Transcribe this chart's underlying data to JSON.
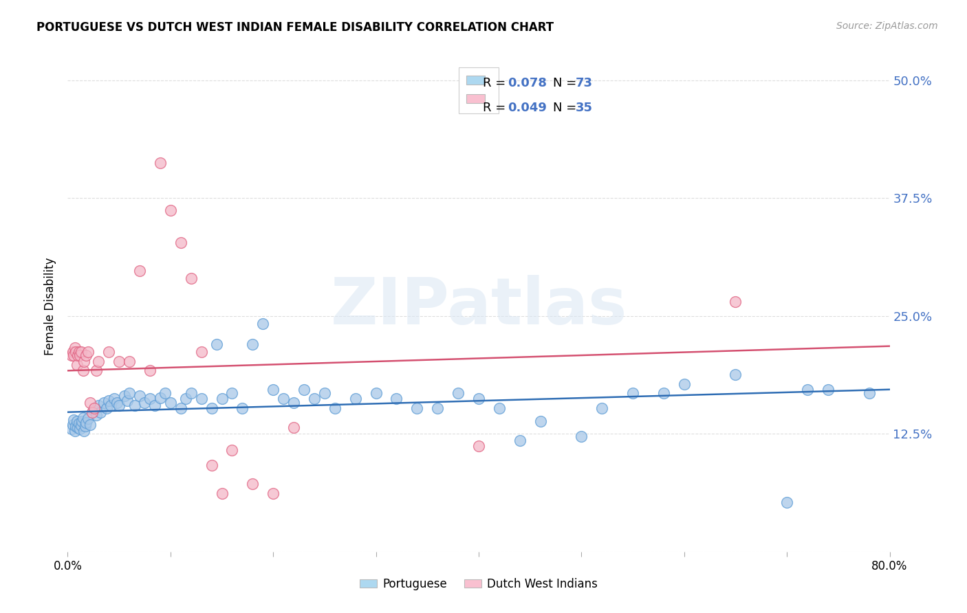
{
  "title": "PORTUGUESE VS DUTCH WEST INDIAN FEMALE DISABILITY CORRELATION CHART",
  "source": "Source: ZipAtlas.com",
  "ylabel": "Female Disability",
  "yticks": [
    0.0,
    0.125,
    0.25,
    0.375,
    0.5
  ],
  "ytick_labels": [
    "",
    "12.5%",
    "25.0%",
    "37.5%",
    "50.0%"
  ],
  "xlim": [
    0.0,
    0.8
  ],
  "ylim": [
    0.0,
    0.52
  ],
  "watermark": "ZIPatlas",
  "blue_color": "#A8C8E8",
  "blue_edge_color": "#5B9BD5",
  "pink_color": "#F4B8C8",
  "pink_edge_color": "#E06080",
  "blue_line_color": "#2E6DB4",
  "pink_line_color": "#D45070",
  "blue_scatter": [
    [
      0.004,
      0.13
    ],
    [
      0.005,
      0.135
    ],
    [
      0.006,
      0.14
    ],
    [
      0.007,
      0.128
    ],
    [
      0.008,
      0.133
    ],
    [
      0.009,
      0.138
    ],
    [
      0.01,
      0.132
    ],
    [
      0.011,
      0.136
    ],
    [
      0.012,
      0.13
    ],
    [
      0.013,
      0.134
    ],
    [
      0.014,
      0.138
    ],
    [
      0.015,
      0.142
    ],
    [
      0.016,
      0.128
    ],
    [
      0.017,
      0.133
    ],
    [
      0.018,
      0.137
    ],
    [
      0.02,
      0.141
    ],
    [
      0.022,
      0.135
    ],
    [
      0.025,
      0.15
    ],
    [
      0.028,
      0.145
    ],
    [
      0.03,
      0.155
    ],
    [
      0.032,
      0.148
    ],
    [
      0.035,
      0.158
    ],
    [
      0.038,
      0.152
    ],
    [
      0.04,
      0.16
    ],
    [
      0.042,
      0.155
    ],
    [
      0.045,
      0.162
    ],
    [
      0.048,
      0.158
    ],
    [
      0.05,
      0.155
    ],
    [
      0.055,
      0.165
    ],
    [
      0.058,
      0.16
    ],
    [
      0.06,
      0.168
    ],
    [
      0.065,
      0.155
    ],
    [
      0.07,
      0.165
    ],
    [
      0.075,
      0.158
    ],
    [
      0.08,
      0.162
    ],
    [
      0.085,
      0.155
    ],
    [
      0.09,
      0.163
    ],
    [
      0.095,
      0.168
    ],
    [
      0.1,
      0.158
    ],
    [
      0.11,
      0.152
    ],
    [
      0.115,
      0.162
    ],
    [
      0.12,
      0.168
    ],
    [
      0.13,
      0.162
    ],
    [
      0.14,
      0.152
    ],
    [
      0.145,
      0.22
    ],
    [
      0.15,
      0.162
    ],
    [
      0.16,
      0.168
    ],
    [
      0.17,
      0.152
    ],
    [
      0.18,
      0.22
    ],
    [
      0.19,
      0.242
    ],
    [
      0.2,
      0.172
    ],
    [
      0.21,
      0.162
    ],
    [
      0.22,
      0.158
    ],
    [
      0.23,
      0.172
    ],
    [
      0.24,
      0.162
    ],
    [
      0.25,
      0.168
    ],
    [
      0.26,
      0.152
    ],
    [
      0.28,
      0.162
    ],
    [
      0.3,
      0.168
    ],
    [
      0.32,
      0.162
    ],
    [
      0.34,
      0.152
    ],
    [
      0.36,
      0.152
    ],
    [
      0.38,
      0.168
    ],
    [
      0.4,
      0.162
    ],
    [
      0.42,
      0.152
    ],
    [
      0.44,
      0.118
    ],
    [
      0.46,
      0.138
    ],
    [
      0.5,
      0.122
    ],
    [
      0.52,
      0.152
    ],
    [
      0.55,
      0.168
    ],
    [
      0.58,
      0.168
    ],
    [
      0.6,
      0.178
    ],
    [
      0.65,
      0.188
    ],
    [
      0.7,
      0.052
    ],
    [
      0.72,
      0.172
    ],
    [
      0.74,
      0.172
    ],
    [
      0.78,
      0.168
    ]
  ],
  "pink_scatter": [
    [
      0.004,
      0.208
    ],
    [
      0.005,
      0.212
    ],
    [
      0.006,
      0.208
    ],
    [
      0.007,
      0.216
    ],
    [
      0.008,
      0.212
    ],
    [
      0.009,
      0.198
    ],
    [
      0.01,
      0.208
    ],
    [
      0.011,
      0.212
    ],
    [
      0.012,
      0.208
    ],
    [
      0.013,
      0.212
    ],
    [
      0.015,
      0.192
    ],
    [
      0.016,
      0.202
    ],
    [
      0.018,
      0.208
    ],
    [
      0.02,
      0.212
    ],
    [
      0.022,
      0.158
    ],
    [
      0.024,
      0.148
    ],
    [
      0.026,
      0.152
    ],
    [
      0.028,
      0.192
    ],
    [
      0.03,
      0.202
    ],
    [
      0.04,
      0.212
    ],
    [
      0.05,
      0.202
    ],
    [
      0.06,
      0.202
    ],
    [
      0.07,
      0.298
    ],
    [
      0.08,
      0.192
    ],
    [
      0.09,
      0.412
    ],
    [
      0.1,
      0.362
    ],
    [
      0.11,
      0.328
    ],
    [
      0.12,
      0.29
    ],
    [
      0.13,
      0.212
    ],
    [
      0.14,
      0.092
    ],
    [
      0.15,
      0.062
    ],
    [
      0.16,
      0.108
    ],
    [
      0.18,
      0.072
    ],
    [
      0.2,
      0.062
    ],
    [
      0.22,
      0.132
    ],
    [
      0.4,
      0.112
    ],
    [
      0.65,
      0.265
    ]
  ],
  "blue_trend": [
    0.0,
    0.148,
    0.8,
    0.172
  ],
  "pink_trend": [
    0.0,
    0.192,
    0.8,
    0.218
  ],
  "legend_blue_patch": "#ADD8F0",
  "legend_pink_patch": "#F9C0D0",
  "grid_color": "#DDDDDD",
  "background_color": "#FFFFFF",
  "tick_color": "#4472C4"
}
